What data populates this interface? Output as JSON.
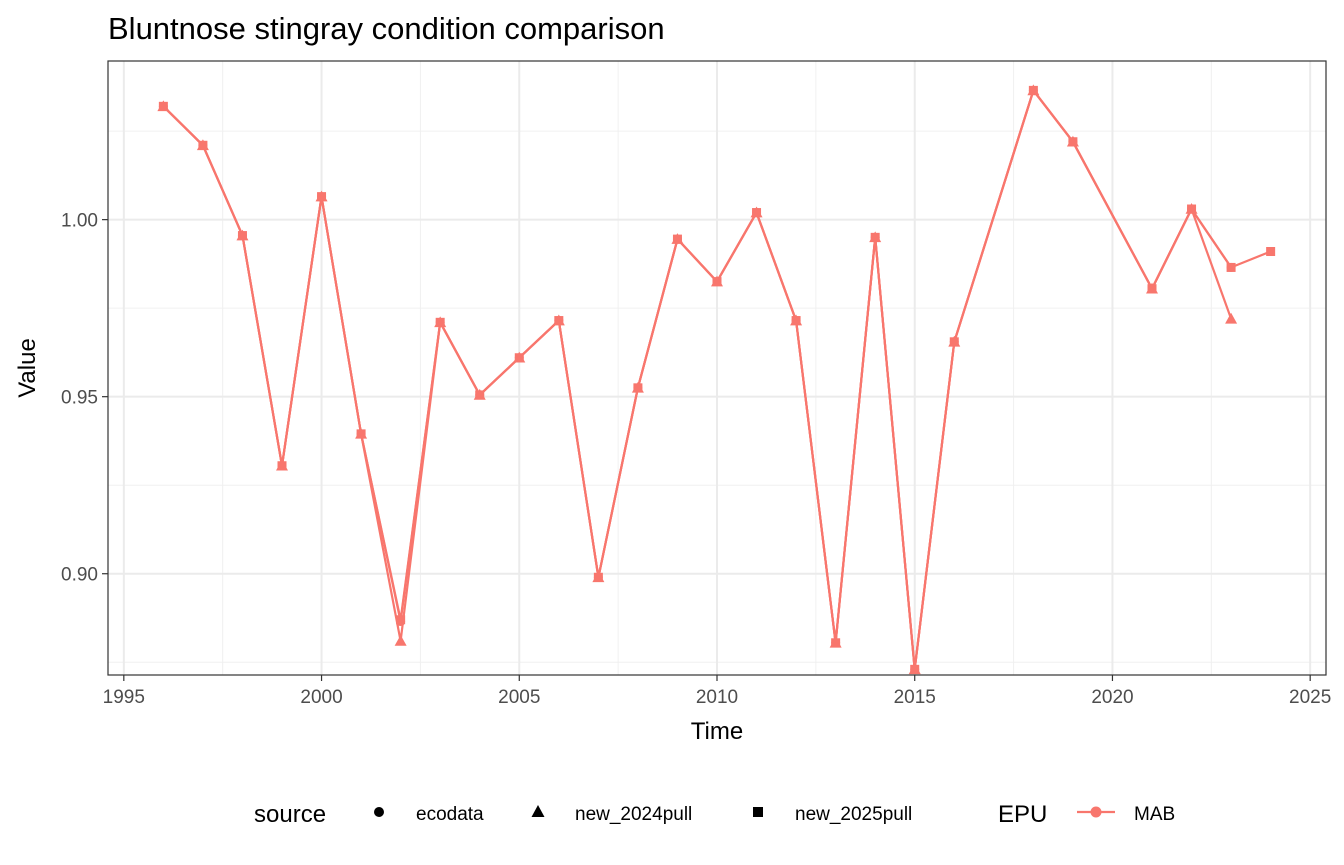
{
  "chart_data": {
    "type": "line",
    "title": "Bluntnose stingray condition comparison",
    "xlabel": "Time",
    "ylabel": "Value",
    "xlim": [
      1994.6,
      2025.4
    ],
    "ylim": [
      0.8714,
      1.0448
    ],
    "x_ticks": [
      1995,
      2000,
      2005,
      2010,
      2015,
      2020,
      2025
    ],
    "x_tick_labels": [
      "1995",
      "2000",
      "2005",
      "2010",
      "2015",
      "2020",
      "2025"
    ],
    "y_ticks": [
      0.9,
      0.95,
      1.0
    ],
    "y_tick_labels": [
      "0.90",
      "0.95",
      "1.00"
    ],
    "grid": true,
    "legend_position": "bottom",
    "line_color": "#F8766D",
    "series": [
      {
        "name": "ecodata",
        "shape": "circle",
        "x": [
          1996,
          1997,
          1998,
          1999,
          2000,
          2001,
          2002,
          2003,
          2004,
          2005,
          2006,
          2007,
          2008,
          2009,
          2010,
          2011,
          2012,
          2013,
          2014,
          2015,
          2016,
          2018,
          2019,
          2021,
          2022,
          2023
        ],
        "y": [
          1.032,
          1.021,
          0.9955,
          0.9305,
          1.0065,
          0.9395,
          0.8865,
          0.971,
          0.9505,
          0.961,
          0.9715,
          0.899,
          0.9525,
          0.9945,
          0.9825,
          1.002,
          0.9715,
          0.8805,
          0.995,
          0.873,
          0.9655,
          1.0365,
          1.022,
          0.9805,
          1.003,
          0.9865
        ]
      },
      {
        "name": "new_2024pull",
        "shape": "triangle",
        "x": [
          1996,
          1997,
          1998,
          1999,
          2000,
          2001,
          2002,
          2003,
          2004,
          2005,
          2006,
          2007,
          2008,
          2009,
          2010,
          2011,
          2012,
          2013,
          2014,
          2015,
          2016,
          2018,
          2019,
          2021,
          2022,
          2023
        ],
        "y": [
          1.032,
          1.021,
          0.9955,
          0.9305,
          1.0065,
          0.9395,
          0.881,
          0.971,
          0.9505,
          0.961,
          0.9715,
          0.899,
          0.9525,
          0.9945,
          0.9825,
          1.002,
          0.9715,
          0.8805,
          0.995,
          0.873,
          0.9655,
          1.0365,
          1.022,
          0.9805,
          1.003,
          0.972
        ]
      },
      {
        "name": "new_2025pull",
        "shape": "square",
        "x": [
          1996,
          1997,
          1998,
          1999,
          2000,
          2001,
          2002,
          2003,
          2004,
          2005,
          2006,
          2007,
          2008,
          2009,
          2010,
          2011,
          2012,
          2013,
          2014,
          2015,
          2016,
          2018,
          2019,
          2021,
          2022,
          2023,
          2024
        ],
        "y": [
          1.032,
          1.021,
          0.9955,
          0.9305,
          1.0065,
          0.9395,
          0.887,
          0.971,
          0.9505,
          0.961,
          0.9715,
          0.899,
          0.9525,
          0.9945,
          0.9825,
          1.002,
          0.9715,
          0.8805,
          0.995,
          0.873,
          0.9655,
          1.0365,
          1.022,
          0.9805,
          1.003,
          0.9865,
          0.991
        ]
      }
    ],
    "legend": {
      "source_title": "source",
      "source_items": [
        "ecodata",
        "new_2024pull",
        "new_2025pull"
      ],
      "epu_title": "EPU",
      "epu_items": [
        "MAB"
      ]
    }
  }
}
